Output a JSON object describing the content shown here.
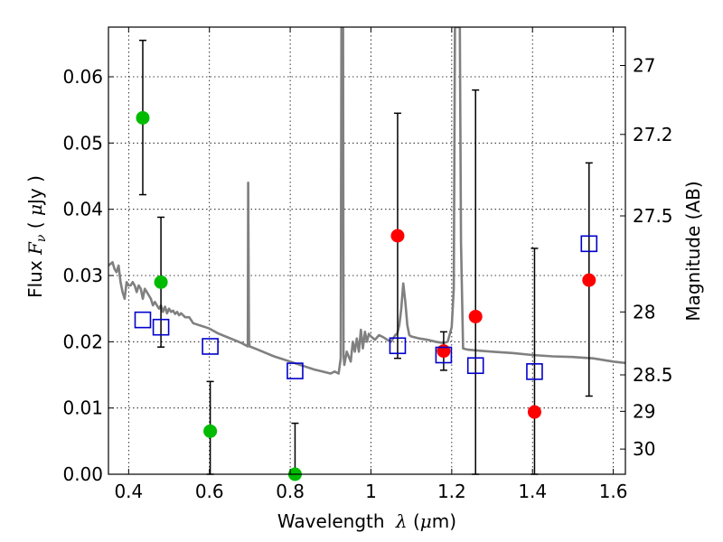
{
  "chart_data": {
    "type": "scatter",
    "xlabel": "Wavelength  λ (μm)",
    "xlabel_parts": [
      "Wavelength ",
      "λ",
      " (",
      "μ",
      "m)"
    ],
    "ylabel": "Flux  Fν  ( μJy )",
    "ylabel_parts": [
      "Flux  ",
      "F",
      "ν",
      "  ( ",
      "μ",
      "Jy )"
    ],
    "ylabel_right": "Magnitude (AB)",
    "xlim": [
      0.35,
      1.63
    ],
    "ylim": [
      0.0,
      0.0675
    ],
    "grid": true,
    "x_ticks": [
      {
        "value": 0.4,
        "label": "0.4"
      },
      {
        "value": 0.6,
        "label": "0.6"
      },
      {
        "value": 0.8,
        "label": "0.8"
      },
      {
        "value": 1.0,
        "label": "1"
      },
      {
        "value": 1.2,
        "label": "1.2"
      },
      {
        "value": 1.4,
        "label": "1.4"
      },
      {
        "value": 1.6,
        "label": "1.6"
      }
    ],
    "y_ticks": [
      {
        "value": 0.0,
        "label": "0.00"
      },
      {
        "value": 0.01,
        "label": "0.01"
      },
      {
        "value": 0.02,
        "label": "0.02"
      },
      {
        "value": 0.03,
        "label": "0.03"
      },
      {
        "value": 0.04,
        "label": "0.04"
      },
      {
        "value": 0.05,
        "label": "0.05"
      },
      {
        "value": 0.06,
        "label": "0.06"
      }
    ],
    "mag_ticks": [
      {
        "value": 0.0617,
        "label": "27"
      },
      {
        "value": 0.0513,
        "label": "27.2"
      },
      {
        "value": 0.039,
        "label": "27.5"
      },
      {
        "value": 0.0245,
        "label": "28"
      },
      {
        "value": 0.015,
        "label": "28.5"
      },
      {
        "value": 0.0095,
        "label": "29"
      },
      {
        "value": 0.0038,
        "label": "30"
      }
    ],
    "series": [
      {
        "name": "Model SED",
        "kind": "line",
        "color": "#808080",
        "x": [
          0.35,
          0.36,
          0.365,
          0.37,
          0.375,
          0.38,
          0.385,
          0.39,
          0.395,
          0.4,
          0.405,
          0.41,
          0.415,
          0.42,
          0.425,
          0.43,
          0.435,
          0.44,
          0.445,
          0.45,
          0.455,
          0.46,
          0.465,
          0.47,
          0.475,
          0.48,
          0.485,
          0.49,
          0.495,
          0.5,
          0.505,
          0.51,
          0.515,
          0.52,
          0.525,
          0.53,
          0.54,
          0.55,
          0.56,
          0.57,
          0.58,
          0.59,
          0.6,
          0.62,
          0.64,
          0.66,
          0.68,
          0.695,
          0.696,
          0.698,
          0.7,
          0.72,
          0.74,
          0.76,
          0.78,
          0.8,
          0.82,
          0.84,
          0.86,
          0.88,
          0.9,
          0.91,
          0.92,
          0.925,
          0.927,
          0.928,
          0.929,
          0.931,
          0.932,
          0.934,
          0.94,
          0.95,
          0.955,
          0.96,
          0.965,
          0.97,
          0.975,
          0.98,
          0.985,
          0.99,
          0.995,
          1.0,
          1.01,
          1.02,
          1.03,
          1.04,
          1.05,
          1.06,
          1.065,
          1.07,
          1.075,
          1.08,
          1.085,
          1.09,
          1.095,
          1.1,
          1.12,
          1.14,
          1.16,
          1.18,
          1.19,
          1.2,
          1.205,
          1.208,
          1.21,
          1.215,
          1.218,
          1.22,
          1.223,
          1.228,
          1.24,
          1.26,
          1.3,
          1.35,
          1.4,
          1.45,
          1.5,
          1.55,
          1.6,
          1.63
        ],
        "y": [
          0.0315,
          0.032,
          0.031,
          0.0305,
          0.0315,
          0.029,
          0.0275,
          0.0265,
          0.029,
          0.0285,
          0.0285,
          0.029,
          0.0285,
          0.0275,
          0.0285,
          0.028,
          0.0265,
          0.028,
          0.0275,
          0.027,
          0.0265,
          0.0255,
          0.026,
          0.0255,
          0.025,
          0.0255,
          0.0245,
          0.0253,
          0.0243,
          0.025,
          0.0245,
          0.0247,
          0.0242,
          0.0245,
          0.024,
          0.0243,
          0.0237,
          0.0237,
          0.0228,
          0.0226,
          0.0224,
          0.0222,
          0.022,
          0.0213,
          0.0208,
          0.0203,
          0.0198,
          0.0193,
          0.044,
          0.02,
          0.0193,
          0.0188,
          0.0183,
          0.0178,
          0.0174,
          0.017,
          0.0166,
          0.0162,
          0.0158,
          0.0155,
          0.0152,
          0.0155,
          0.0152,
          0.0175,
          0.0675,
          0.0675,
          0.0675,
          0.0675,
          0.018,
          0.0165,
          0.0185,
          0.017,
          0.02,
          0.0185,
          0.0205,
          0.0185,
          0.0218,
          0.019,
          0.0215,
          0.02,
          0.0212,
          0.0208,
          0.0203,
          0.021,
          0.0207,
          0.0203,
          0.02,
          0.021,
          0.0212,
          0.0225,
          0.025,
          0.0288,
          0.026,
          0.0225,
          0.021,
          0.0208,
          0.0205,
          0.0203,
          0.02,
          0.0198,
          0.02,
          0.0222,
          0.028,
          0.0675,
          0.0675,
          0.0675,
          0.0675,
          0.0675,
          0.035,
          0.019,
          0.0188,
          0.0187,
          0.0185,
          0.0183,
          0.018,
          0.0178,
          0.0177,
          0.0175,
          0.017,
          0.0168
        ]
      },
      {
        "name": "Green detections",
        "kind": "points",
        "color": "#00bb00",
        "points": [
          {
            "x": 0.435,
            "y": 0.0538,
            "ylo": 0.0422,
            "yhi": 0.0655
          },
          {
            "x": 0.48,
            "y": 0.029,
            "ylo": 0.0192,
            "yhi": 0.0388
          },
          {
            "x": 0.602,
            "y": 0.0065,
            "ylo": 0.0,
            "yhi": 0.014
          },
          {
            "x": 0.812,
            "y": 0.0,
            "ylo": 0.0,
            "yhi": 0.0077
          }
        ]
      },
      {
        "name": "Red detections",
        "kind": "points",
        "color": "#ff0000",
        "points": [
          {
            "x": 1.066,
            "y": 0.036,
            "ylo": 0.0175,
            "yhi": 0.0545
          },
          {
            "x": 1.18,
            "y": 0.0186,
            "ylo": 0.0157,
            "yhi": 0.0215
          },
          {
            "x": 1.259,
            "y": 0.0238,
            "ylo": 0.0,
            "yhi": 0.058
          },
          {
            "x": 1.405,
            "y": 0.0094,
            "ylo": 0.0,
            "yhi": 0.0341
          },
          {
            "x": 1.54,
            "y": 0.0293,
            "ylo": 0.0118,
            "yhi": 0.047
          }
        ]
      },
      {
        "name": "Model photometry",
        "kind": "squares",
        "color": "#0000cc",
        "points": [
          {
            "x": 0.435,
            "y": 0.0233
          },
          {
            "x": 0.48,
            "y": 0.0222
          },
          {
            "x": 0.602,
            "y": 0.0193
          },
          {
            "x": 0.812,
            "y": 0.0156
          },
          {
            "x": 1.066,
            "y": 0.0194
          },
          {
            "x": 1.18,
            "y": 0.018
          },
          {
            "x": 1.259,
            "y": 0.0164
          },
          {
            "x": 1.405,
            "y": 0.0155
          },
          {
            "x": 1.54,
            "y": 0.0348
          }
        ]
      }
    ]
  }
}
